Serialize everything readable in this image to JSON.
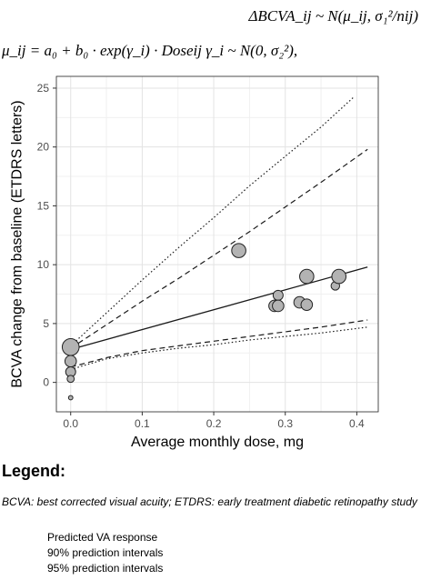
{
  "equations": {
    "line1": "ΔBCVA_ij ~ N(μ_ij, σ₁²/nij)",
    "line2": "μ_ij = a₀ + b₀ · exp(γ_i) · Doseij   γ_i ~ N(0, σ₂²),"
  },
  "legend": {
    "title": "Legend:",
    "abbreviations": "BCVA: best corrected visual acuity; ETDRS: early treatment diabetic retinopathy study",
    "items": [
      {
        "label": "Predicted VA response",
        "style": "solid"
      },
      {
        "label": "90% prediction intervals",
        "style": "dashed"
      },
      {
        "label": "95% prediction intervals",
        "style": "dotted"
      }
    ]
  },
  "chart_data": {
    "type": "scatter",
    "title": "",
    "xlabel": "Average monthly dose, mg",
    "ylabel": "BCVA change from baseline (ETDRS letters)",
    "xlim": [
      -0.02,
      0.43
    ],
    "ylim": [
      -2.5,
      26
    ],
    "xticks": [
      0.0,
      0.1,
      0.2,
      0.3,
      0.4
    ],
    "xtick_labels": [
      "0.0",
      "0.1",
      "0.2",
      "0.3",
      "0.4"
    ],
    "yticks": [
      0,
      5,
      10,
      15,
      20,
      25
    ],
    "ytick_labels": [
      "0",
      "5",
      "10",
      "15",
      "20",
      "25"
    ],
    "grid": true,
    "points": [
      {
        "x": 0.0,
        "y": 3.0,
        "size": 5
      },
      {
        "x": 0.0,
        "y": 1.8,
        "size": 3
      },
      {
        "x": 0.0,
        "y": 0.9,
        "size": 2.5
      },
      {
        "x": 0.0,
        "y": 0.3,
        "size": 1.5
      },
      {
        "x": 0.0,
        "y": -1.3,
        "size": 0.5
      },
      {
        "x": 0.235,
        "y": 11.2,
        "size": 4
      },
      {
        "x": 0.285,
        "y": 6.5,
        "size": 3
      },
      {
        "x": 0.29,
        "y": 7.4,
        "size": 2.5
      },
      {
        "x": 0.29,
        "y": 6.5,
        "size": 3
      },
      {
        "x": 0.32,
        "y": 6.8,
        "size": 3
      },
      {
        "x": 0.33,
        "y": 9.0,
        "size": 4
      },
      {
        "x": 0.33,
        "y": 6.6,
        "size": 3
      },
      {
        "x": 0.37,
        "y": 8.2,
        "size": 2
      },
      {
        "x": 0.375,
        "y": 9.0,
        "size": 4
      }
    ],
    "series": [
      {
        "style": "solid",
        "x": [
          0.0,
          0.415
        ],
        "y": [
          2.8,
          9.8
        ]
      },
      {
        "style": "dashed",
        "x": [
          0.0,
          0.05,
          0.1,
          0.15,
          0.2,
          0.25,
          0.3,
          0.35,
          0.415
        ],
        "y": [
          2.9,
          4.9,
          6.9,
          8.8,
          10.8,
          12.8,
          14.9,
          17.0,
          19.8
        ]
      },
      {
        "style": "dotted",
        "x": [
          0.0,
          0.05,
          0.1,
          0.15,
          0.2,
          0.25,
          0.3,
          0.35,
          0.395
        ],
        "y": [
          3.1,
          5.9,
          8.7,
          11.4,
          14.0,
          16.7,
          19.2,
          21.7,
          24.2
        ]
      },
      {
        "style": "dashed",
        "x": [
          0.0,
          0.05,
          0.1,
          0.15,
          0.2,
          0.25,
          0.3,
          0.35,
          0.415
        ],
        "y": [
          1.3,
          2.1,
          2.7,
          3.1,
          3.5,
          3.9,
          4.3,
          4.7,
          5.3
        ]
      },
      {
        "style": "dotted",
        "x": [
          0.0,
          0.05,
          0.1,
          0.15,
          0.2,
          0.25,
          0.3,
          0.35,
          0.415
        ],
        "y": [
          1.1,
          2.0,
          2.5,
          2.9,
          3.2,
          3.6,
          3.9,
          4.2,
          4.7
        ]
      }
    ]
  }
}
